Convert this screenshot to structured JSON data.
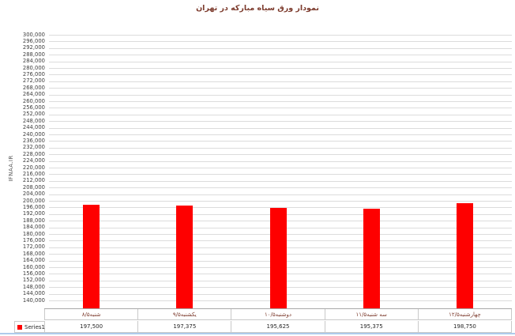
{
  "chart_data": {
    "type": "bar",
    "title": "نمودار ورق سیاه مبارکه در تهران",
    "ylabel": "IFNAA.IR",
    "xlabel": "",
    "categories": [
      "شنبه۸/۵",
      "یکشنبه۹/۵",
      "دوشنبه۱۰/۵",
      "سه شنبه۱۱/۵",
      "چهارشنبه۱۲/۵"
    ],
    "series": [
      {
        "name": "Series1",
        "values": [
          197500,
          197375,
          195625,
          195375,
          198750
        ]
      }
    ],
    "value_labels": [
      "197,500",
      "197,375",
      "195,625",
      "195,375",
      "198,750"
    ],
    "ylim": [
      140000,
      300000
    ],
    "ytick_step": 4000,
    "ytick_format": "#,##0",
    "grid": "horizontal",
    "legend_position": "bottom-table-left",
    "bar_color": "#fe0000"
  },
  "colors": {
    "bar": "#fe0000",
    "title_text": "#7c3a2c",
    "gridline": "#dcdcdc",
    "axis_text": "#3f3f3f",
    "axis_title_text": "#595959",
    "table_border": "#c9c9c9",
    "bottom_rule": "#aecbec"
  }
}
